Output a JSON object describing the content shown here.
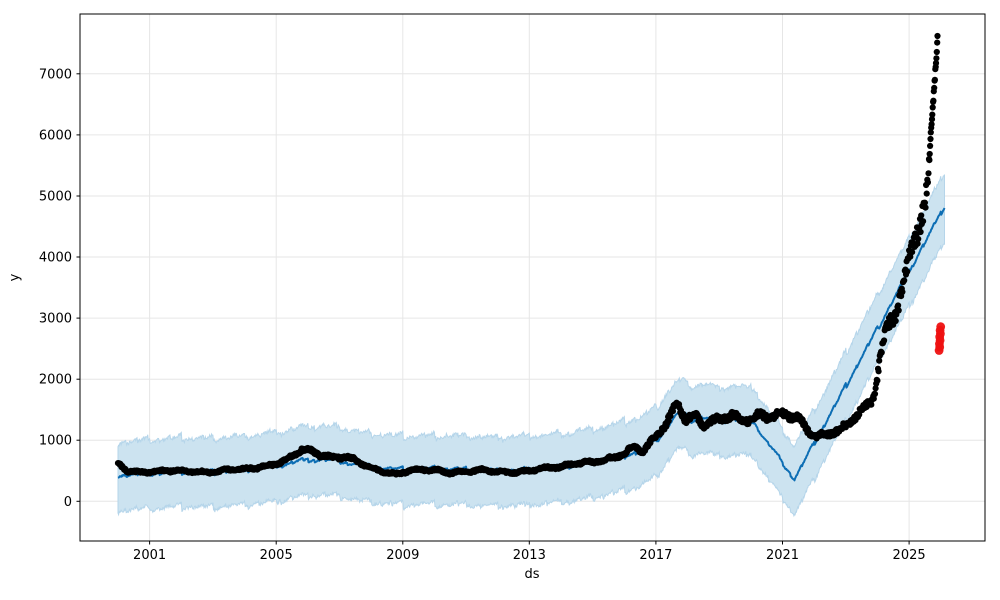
{
  "figure": {
    "background": "#ffffff"
  },
  "chart_data": {
    "type": "scatter+line+band",
    "description": "Prophet-style time-series forecast plot: black observed data points, blue forecast line with light-blue uncertainty interval band, red anomaly points at the forecast horizon",
    "title": "",
    "xlabel": "ds",
    "ylabel": "y",
    "xlim": [
      1998.8,
      2027.4
    ],
    "ylim": [
      -650,
      7980
    ],
    "x_ticks": [
      2001,
      2005,
      2009,
      2013,
      2017,
      2021,
      2025
    ],
    "y_ticks": [
      0,
      1000,
      2000,
      3000,
      4000,
      5000,
      6000,
      7000
    ],
    "grid": true,
    "legend": false,
    "colors": {
      "observed": "#000000",
      "forecast_line": "#0d6eb4",
      "interval_fill": "#cce3f0",
      "interval_edge": "#b5d5ea",
      "anomaly": "#ee1111",
      "grid": "#e6e6e6",
      "spine": "#000000",
      "tick_label": "#000000"
    },
    "observed": {
      "name": "historical observations",
      "marker_radius": 3.1,
      "points_per_year": 52,
      "x_start": 2000.0,
      "x_end": 2025.62,
      "noise_frac": 0.05,
      "noise_min": 24,
      "trend_anchors": [
        [
          2000.0,
          620
        ],
        [
          2000.1,
          575
        ],
        [
          2000.3,
          500
        ],
        [
          2000.7,
          470
        ],
        [
          2001.0,
          480
        ],
        [
          2001.5,
          505
        ],
        [
          2002.0,
          500
        ],
        [
          2002.5,
          480
        ],
        [
          2003.0,
          475
        ],
        [
          2003.5,
          520
        ],
        [
          2004.0,
          525
        ],
        [
          2004.5,
          560
        ],
        [
          2005.0,
          610
        ],
        [
          2005.4,
          700
        ],
        [
          2005.8,
          855
        ],
        [
          2006.1,
          820
        ],
        [
          2006.4,
          760
        ],
        [
          2006.8,
          710
        ],
        [
          2007.2,
          730
        ],
        [
          2007.6,
          650
        ],
        [
          2008.0,
          550
        ],
        [
          2008.4,
          480
        ],
        [
          2008.8,
          440
        ],
        [
          2009.2,
          500
        ],
        [
          2009.6,
          520
        ],
        [
          2010.0,
          515
        ],
        [
          2010.5,
          465
        ],
        [
          2011.0,
          485
        ],
        [
          2011.5,
          515
        ],
        [
          2012.0,
          485
        ],
        [
          2012.5,
          470
        ],
        [
          2013.0,
          500
        ],
        [
          2013.5,
          545
        ],
        [
          2014.0,
          565
        ],
        [
          2014.5,
          620
        ],
        [
          2015.0,
          645
        ],
        [
          2015.5,
          690
        ],
        [
          2016.0,
          780
        ],
        [
          2016.3,
          890
        ],
        [
          2016.6,
          830
        ],
        [
          2017.0,
          1060
        ],
        [
          2017.3,
          1260
        ],
        [
          2017.55,
          1480
        ],
        [
          2017.7,
          1590
        ],
        [
          2017.95,
          1340
        ],
        [
          2018.2,
          1410
        ],
        [
          2018.5,
          1260
        ],
        [
          2018.8,
          1310
        ],
        [
          2019.1,
          1360
        ],
        [
          2019.4,
          1420
        ],
        [
          2019.7,
          1310
        ],
        [
          2020.0,
          1360
        ],
        [
          2020.3,
          1410
        ],
        [
          2020.6,
          1380
        ],
        [
          2020.9,
          1430
        ],
        [
          2021.2,
          1410
        ],
        [
          2021.5,
          1360
        ],
        [
          2021.8,
          1160
        ],
        [
          2022.1,
          1060
        ],
        [
          2022.4,
          1090
        ],
        [
          2022.7,
          1160
        ],
        [
          2023.0,
          1220
        ],
        [
          2023.4,
          1460
        ],
        [
          2023.8,
          1600
        ],
        [
          2023.95,
          1900
        ],
        [
          2024.1,
          2450
        ],
        [
          2024.3,
          2800
        ],
        [
          2024.5,
          3000
        ],
        [
          2024.7,
          3350
        ],
        [
          2024.9,
          3700
        ],
        [
          2025.1,
          4100
        ],
        [
          2025.3,
          4550
        ],
        [
          2025.5,
          4900
        ],
        [
          2025.62,
          5120
        ]
      ]
    },
    "observed_spike": {
      "name": "recent vertical run-up of observations",
      "x_start": 2025.63,
      "x_end": 2025.9,
      "y_start": 5550,
      "y_end": 7560,
      "count": 24,
      "jitter": 60
    },
    "forecast": {
      "name": "yhat forecast line",
      "x_start": 2000.0,
      "x_end": 2026.12,
      "step": 0.02,
      "line_width": 2,
      "season1_amp": 32,
      "season2_amp": 20,
      "season2_period": 0.35,
      "noise": 10,
      "anchors": [
        [
          2000.0,
          430
        ],
        [
          2001.0,
          455
        ],
        [
          2002.0,
          490
        ],
        [
          2003.0,
          480
        ],
        [
          2004.0,
          515
        ],
        [
          2005.0,
          575
        ],
        [
          2005.8,
          665
        ],
        [
          2006.5,
          685
        ],
        [
          2007.0,
          655
        ],
        [
          2007.5,
          605
        ],
        [
          2008.0,
          560
        ],
        [
          2009.0,
          515
        ],
        [
          2010.0,
          528
        ],
        [
          2011.0,
          518
        ],
        [
          2012.0,
          498
        ],
        [
          2013.0,
          518
        ],
        [
          2014.0,
          558
        ],
        [
          2015.0,
          628
        ],
        [
          2016.0,
          752
        ],
        [
          2016.5,
          820
        ],
        [
          2017.0,
          980
        ],
        [
          2017.6,
          1390
        ],
        [
          2017.85,
          1450
        ],
        [
          2018.1,
          1330
        ],
        [
          2018.5,
          1375
        ],
        [
          2019.0,
          1315
        ],
        [
          2019.6,
          1340
        ],
        [
          2020.1,
          1305
        ],
        [
          2020.35,
          1085
        ],
        [
          2020.7,
          845
        ],
        [
          2021.0,
          625
        ],
        [
          2021.38,
          360
        ],
        [
          2021.7,
          665
        ],
        [
          2022.0,
          945
        ],
        [
          2022.5,
          1415
        ],
        [
          2023.0,
          1885
        ],
        [
          2023.5,
          2355
        ],
        [
          2024.0,
          2825
        ],
        [
          2024.5,
          3295
        ],
        [
          2025.0,
          3765
        ],
        [
          2025.5,
          4240
        ],
        [
          2026.12,
          4820
        ]
      ]
    },
    "interval": {
      "name": "uncertainty interval (yhat_lower / yhat_upper)",
      "upper_offset": 545,
      "lower_offset": 575,
      "season1_amp": 45,
      "season2_amp": 28,
      "season2_period": 0.35,
      "noise": 28
    },
    "anomalies": {
      "name": "anomaly points",
      "marker_radius": 4.4,
      "points": [
        [
          2025.95,
          2470
        ],
        [
          2025.97,
          2525
        ],
        [
          2025.96,
          2580
        ],
        [
          2025.98,
          2635
        ],
        [
          2025.97,
          2690
        ],
        [
          2025.99,
          2745
        ],
        [
          2025.98,
          2800
        ],
        [
          2026.0,
          2860
        ]
      ]
    }
  }
}
